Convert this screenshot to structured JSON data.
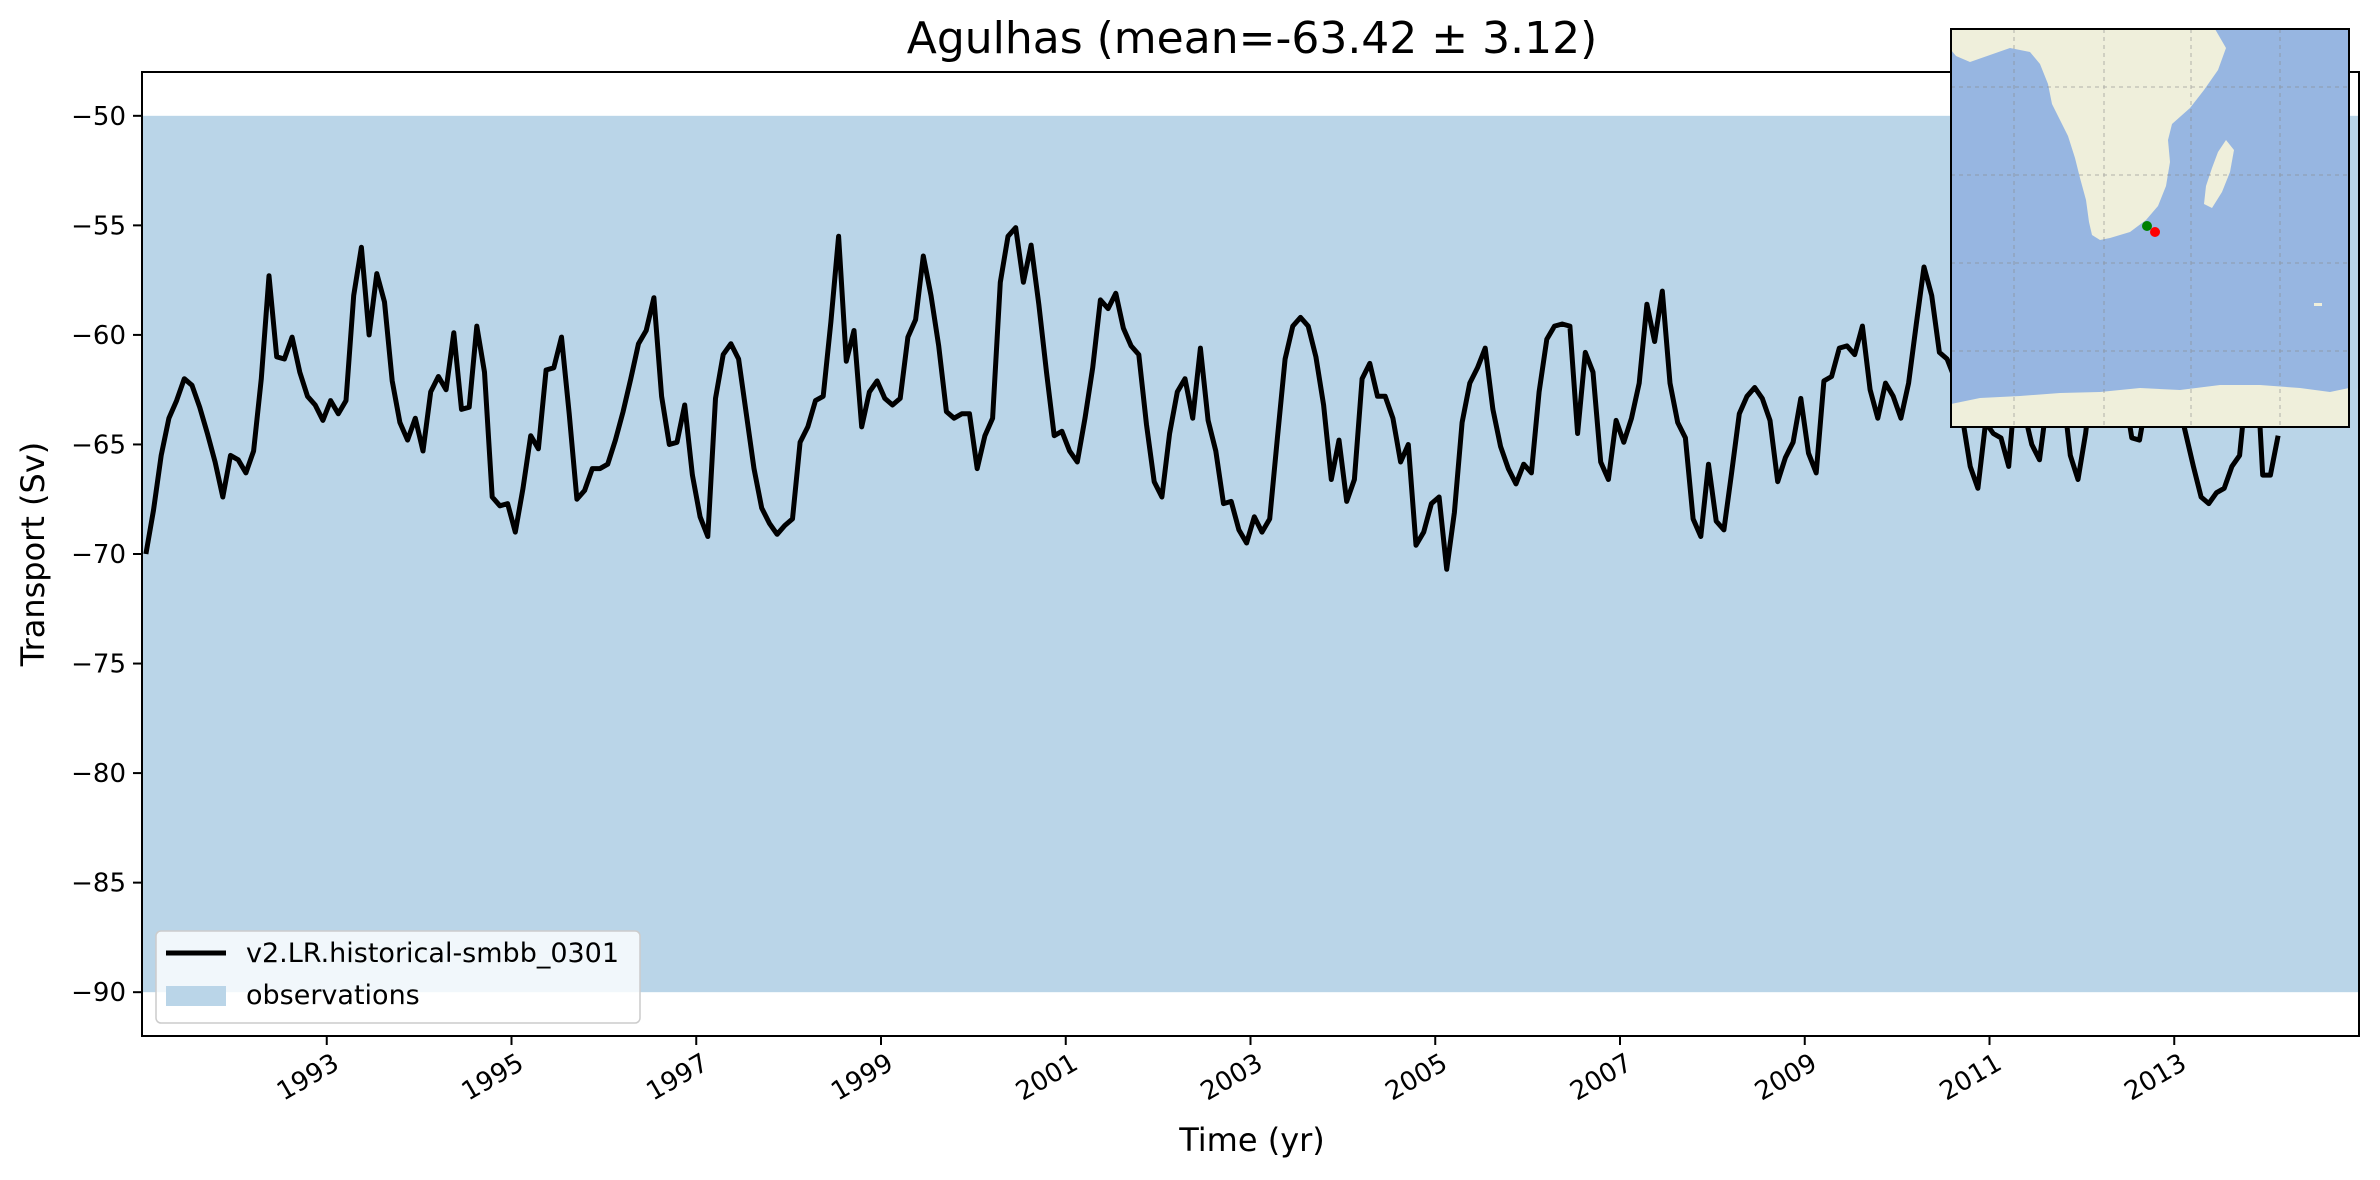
{
  "chart_data": {
    "type": "line",
    "title": "Agulhas (mean=-63.42 ± 3.12)",
    "xlabel": "Time (yr)",
    "ylabel": "Transport (Sv)",
    "xlim": [
      1991.0,
      2015.0
    ],
    "ylim": [
      -92,
      -48
    ],
    "x_ticks": [
      1993,
      1995,
      1997,
      1999,
      2001,
      2003,
      2005,
      2007,
      2009,
      2011,
      2013
    ],
    "y_ticks": [
      -50,
      -55,
      -60,
      -65,
      -70,
      -75,
      -80,
      -85,
      -90
    ],
    "x_tick_labels": [
      "1993",
      "1995",
      "1997",
      "1999",
      "2001",
      "2003",
      "2005",
      "2007",
      "2009",
      "2011",
      "2013"
    ],
    "y_tick_labels": [
      "−50",
      "−55",
      "−60",
      "−65",
      "−70",
      "−75",
      "−80",
      "−85",
      "−90"
    ],
    "observations_band": {
      "name": "observations",
      "ymin": -90,
      "ymax": -50,
      "color": "#bad5e8"
    },
    "series": [
      {
        "name": "v2.LR.historical-smbb_0301",
        "color": "#000000",
        "x_start": 1991.0417,
        "x_step": 0.08333,
        "values": [
          -70.0,
          -68.0,
          -65.5,
          -63.8,
          -63.0,
          -62.0,
          -62.3,
          -63.3,
          -64.5,
          -65.8,
          -67.4,
          -65.5,
          -65.7,
          -66.3,
          -65.3,
          -62.0,
          -57.3,
          -61.0,
          -61.1,
          -60.1,
          -61.7,
          -62.8,
          -63.2,
          -63.9,
          -63.0,
          -63.6,
          -63.0,
          -58.2,
          -56.0,
          -60.0,
          -57.2,
          -58.5,
          -62.1,
          -64.0,
          -64.8,
          -63.8,
          -65.3,
          -62.6,
          -61.9,
          -62.5,
          -59.9,
          -63.4,
          -63.3,
          -59.6,
          -61.7,
          -67.4,
          -67.8,
          -67.7,
          -69.0,
          -67.0,
          -64.6,
          -65.2,
          -61.6,
          -61.5,
          -60.1,
          -63.6,
          -67.5,
          -67.1,
          -66.1,
          -66.1,
          -65.9,
          -64.8,
          -63.5,
          -62.0,
          -60.4,
          -59.8,
          -58.3,
          -62.8,
          -65.0,
          -64.9,
          -63.2,
          -66.4,
          -68.3,
          -69.2,
          -62.9,
          -60.9,
          -60.4,
          -61.1,
          -63.6,
          -66.1,
          -67.9,
          -68.6,
          -69.1,
          -68.7,
          -68.4,
          -64.9,
          -64.2,
          -63.0,
          -62.8,
          -59.4,
          -55.5,
          -61.2,
          -59.8,
          -64.2,
          -62.6,
          -62.1,
          -62.9,
          -63.2,
          -62.9,
          -60.1,
          -59.3,
          -56.4,
          -58.2,
          -60.5,
          -63.5,
          -63.8,
          -63.6,
          -63.6,
          -66.1,
          -64.6,
          -63.8,
          -57.6,
          -55.5,
          -55.1,
          -57.6,
          -55.9,
          -58.6,
          -61.7,
          -64.6,
          -64.4,
          -65.3,
          -65.8,
          -63.8,
          -61.5,
          -58.4,
          -58.8,
          -58.1,
          -59.7,
          -60.5,
          -60.9,
          -64.1,
          -66.7,
          -67.4,
          -64.5,
          -62.6,
          -62.0,
          -63.8,
          -60.6,
          -63.9,
          -65.3,
          -67.7,
          -67.6,
          -68.9,
          -69.5,
          -68.3,
          -69.0,
          -68.4,
          -64.7,
          -61.1,
          -59.6,
          -59.2,
          -59.6,
          -61.0,
          -63.2,
          -66.6,
          -64.8,
          -67.6,
          -66.6,
          -62.0,
          -61.3,
          -62.8,
          -62.8,
          -63.8,
          -65.8,
          -65.0,
          -69.6,
          -69.0,
          -67.7,
          -67.4,
          -70.7,
          -68.1,
          -64.0,
          -62.2,
          -61.5,
          -60.6,
          -63.4,
          -65.1,
          -66.1,
          -66.8,
          -65.9,
          -66.3,
          -62.6,
          -60.2,
          -59.6,
          -59.5,
          -59.6,
          -64.5,
          -60.8,
          -61.7,
          -65.8,
          -66.6,
          -63.9,
          -64.9,
          -63.8,
          -62.2,
          -58.6,
          -60.3,
          -58.0,
          -62.2,
          -64.0,
          -64.7,
          -68.4,
          -69.2,
          -65.9,
          -68.5,
          -68.9,
          -66.3,
          -63.6,
          -62.8,
          -62.4,
          -62.9,
          -63.9,
          -66.7,
          -65.6,
          -64.9,
          -62.9,
          -65.4,
          -66.3,
          -62.1,
          -61.9,
          -60.6,
          -60.5,
          -60.9,
          -59.6,
          -62.5,
          -63.8,
          -62.2,
          -62.8,
          -63.8,
          -62.2,
          -59.5,
          -56.9,
          -58.2,
          -60.8,
          -61.1,
          -62.0,
          -63.8,
          -66.0,
          -67.0,
          -64.0,
          -64.5,
          -64.7,
          -66.0,
          -61.8,
          -63.5,
          -65.0,
          -65.7,
          -63.0,
          -60.3,
          -62.4,
          -65.5,
          -66.6,
          -64.5,
          -61.5,
          -60.5,
          -60.5,
          -60.5,
          -62.5,
          -64.7,
          -64.8,
          -62.8,
          -61.0,
          -61.1,
          -61.7,
          -63.0,
          -64.5,
          -66.0,
          -67.4,
          -67.7,
          -67.2,
          -67.0,
          -66.0,
          -65.5,
          -62.0,
          -60.0,
          -66.4,
          -66.4,
          -64.6
        ]
      }
    ],
    "legend": {
      "position": "lower-left",
      "entries": [
        "v2.LR.historical-smbb_0301",
        "observations"
      ]
    },
    "grid": false
  },
  "inset_map": {
    "ocean_color": "#97b6e1",
    "land_color": "#efefdb",
    "markers": [
      {
        "color": "#008000"
      },
      {
        "color": "#ff0000"
      }
    ]
  }
}
